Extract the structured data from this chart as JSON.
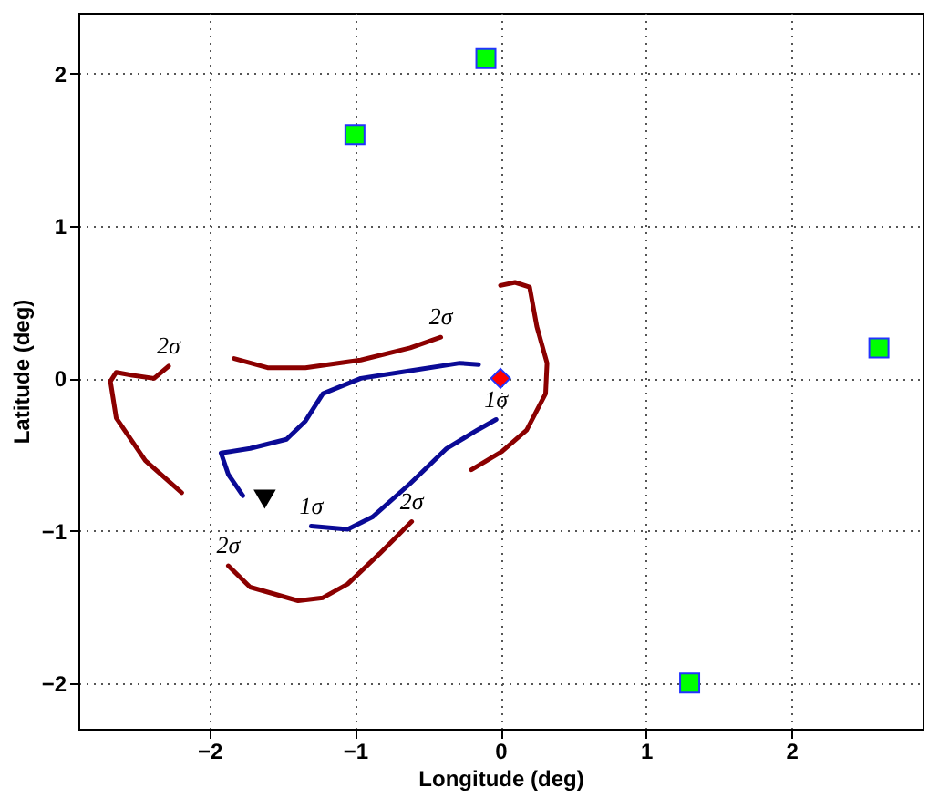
{
  "chart_data": {
    "type": "line",
    "xlabel": "Longitude (deg)",
    "ylabel": "Latitude (deg)",
    "xlim": [
      -2.9,
      2.9
    ],
    "ylim": [
      -2.3,
      2.4
    ],
    "xticks": [
      -2,
      -1,
      0,
      1,
      2
    ],
    "yticks": [
      -2,
      -1,
      0,
      1,
      2
    ],
    "grid": true,
    "series": [
      {
        "marker": "none",
        "color": "#8b0000",
        "x": [
          -2.28,
          -2.38,
          -2.53,
          -2.64,
          -2.68,
          -2.64,
          -2.44,
          -2.19
        ],
        "values": [
          0.08,
          0,
          0.02,
          0.04,
          -0.02,
          -0.26,
          -0.54,
          -0.75
        ]
      },
      {
        "marker": "none",
        "color": "#8b0000",
        "x": [
          -1.83,
          -1.6,
          -1.34,
          -0.96,
          -0.62,
          -0.41
        ],
        "values": [
          0.13,
          0.07,
          0.07,
          0.12,
          0.2,
          0.27
        ]
      },
      {
        "marker": "none",
        "color": "#8b0000",
        "x": [
          0.0,
          0.1,
          0.2,
          0.25,
          0.32,
          0.31,
          0.18,
          0.01,
          -0.2
        ],
        "values": [
          0.61,
          0.63,
          0.6,
          0.34,
          0.1,
          -0.1,
          -0.34,
          -0.48,
          -0.6
        ]
      },
      {
        "marker": "none",
        "color": "#8b0000",
        "x": [
          -1.87,
          -1.72,
          -1.39,
          -1.22,
          -1.05,
          -0.83,
          -0.61
        ],
        "values": [
          -1.23,
          -1.37,
          -1.46,
          -1.44,
          -1.35,
          -1.15,
          -0.94
        ]
      },
      {
        "marker": "none",
        "color": "#0a0a96",
        "x": [
          -1.77,
          -1.87,
          -1.92,
          -1.72,
          -1.47,
          -1.34,
          -1.22,
          -0.96,
          -0.62,
          -0.28,
          -0.15
        ],
        "values": [
          -0.77,
          -0.63,
          -0.49,
          -0.46,
          -0.4,
          -0.28,
          -0.1,
          0,
          0.05,
          0.1,
          0.09
        ]
      },
      {
        "marker": "none",
        "color": "#0a0a96",
        "x": [
          -1.3,
          -1.05,
          -0.88,
          -0.62,
          -0.37,
          -0.16,
          -0.03
        ],
        "values": [
          -0.97,
          -0.99,
          -0.91,
          -0.69,
          -0.46,
          -0.34,
          -0.27
        ]
      },
      {
        "type": "scatter",
        "marker": "square",
        "color": "#00ff00",
        "x": [
          -1.0,
          -0.1,
          2.6,
          1.3
        ],
        "values": [
          1.6,
          2.1,
          0.2,
          -2.0
        ]
      },
      {
        "type": "scatter",
        "marker": "diamond",
        "color": "#ff0000",
        "x": [
          0.0
        ],
        "values": [
          0.0
        ]
      },
      {
        "type": "scatter",
        "marker": "triangle",
        "color": "#000000",
        "x": [
          -1.62
        ],
        "values": [
          -0.79
        ]
      }
    ],
    "annotations": [
      {
        "text": "2σ",
        "x": -0.41,
        "y": 0.27
      },
      {
        "text": "2σ",
        "x": -2.28,
        "y": 0.08
      },
      {
        "text": "2σ",
        "x": -0.61,
        "y": -0.94
      },
      {
        "text": "2σ",
        "x": -1.87,
        "y": -1.23
      },
      {
        "text": "1σ",
        "x": -1.3,
        "y": -0.97
      },
      {
        "text": "1σ",
        "x": -0.03,
        "y": -0.27
      }
    ]
  }
}
